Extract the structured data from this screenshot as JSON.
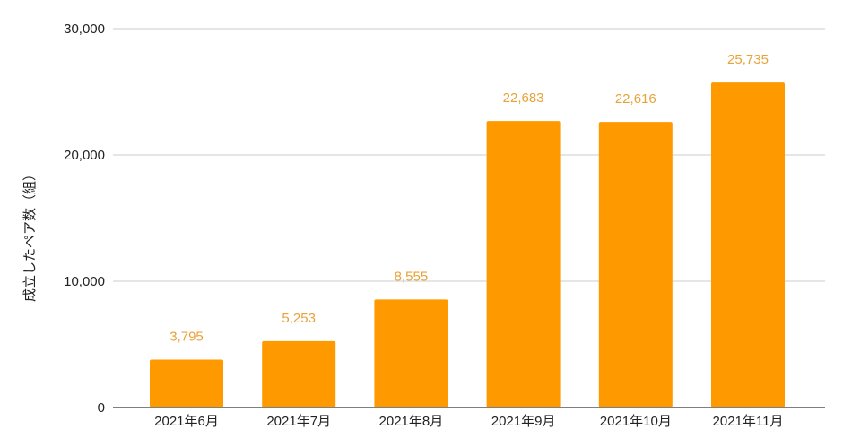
{
  "chart_data": {
    "type": "bar",
    "title": "",
    "xlabel": "",
    "ylabel": "成立したペア数（組）",
    "categories": [
      "2021年6月",
      "2021年7月",
      "2021年8月",
      "2021年9月",
      "2021年10月",
      "2021年11月"
    ],
    "values": [
      3795,
      5253,
      8555,
      22683,
      22616,
      25735
    ],
    "data_labels": [
      "3,795",
      "5,253",
      "8,555",
      "22,683",
      "22,616",
      "25,735"
    ],
    "ylim": [
      0,
      30000
    ],
    "yticks": [
      0,
      10000,
      20000,
      30000
    ],
    "ytick_labels": [
      "0",
      "10,000",
      "20,000",
      "30,000"
    ],
    "grid": true,
    "legend": "none",
    "colors": {
      "bar": "#FF9900",
      "data_label": "#E8A23A",
      "grid": "#CCCCCC",
      "axis": "#333333",
      "text": "#222222"
    }
  }
}
